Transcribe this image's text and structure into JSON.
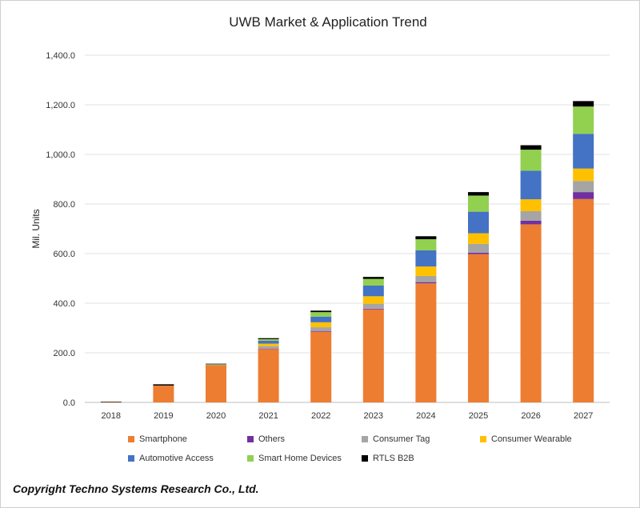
{
  "chart_data": {
    "type": "bar",
    "stacked": true,
    "title": "UWB Market & Application Trend",
    "xlabel": "",
    "ylabel": "Mil. Units",
    "ylim": [
      0,
      1400
    ],
    "yticks": [
      "0.0",
      "200.0",
      "400.0",
      "600.0",
      "800.0",
      "1,000.0",
      "1,200.0",
      "1,400.0"
    ],
    "grid": true,
    "legend_position": "bottom",
    "categories": [
      "2018",
      "2019",
      "2020",
      "2021",
      "2022",
      "2023",
      "2024",
      "2025",
      "2026",
      "2027"
    ],
    "series": [
      {
        "name": "Smartphone",
        "color": "#ED7D31",
        "values": [
          1,
          68,
          150,
          215,
          285,
          375,
          480,
          598,
          718,
          820
        ]
      },
      {
        "name": "Others",
        "color": "#7030A0",
        "values": [
          0,
          0,
          0,
          2,
          3,
          3,
          5,
          6,
          15,
          28
        ]
      },
      {
        "name": "Consumer Tag",
        "color": "#A5A5A5",
        "values": [
          0,
          0,
          1,
          10,
          15,
          20,
          25,
          35,
          38,
          45
        ]
      },
      {
        "name": "Consumer Wearable",
        "color": "#FFC000",
        "values": [
          0,
          0,
          1,
          10,
          20,
          30,
          38,
          43,
          48,
          50
        ]
      },
      {
        "name": "Automotive Access",
        "color": "#4472C4",
        "values": [
          0,
          0,
          1,
          12,
          23,
          43,
          65,
          87,
          115,
          140
        ]
      },
      {
        "name": "Smart Home Devices",
        "color": "#92D050",
        "values": [
          0,
          0,
          1,
          6,
          18,
          27,
          45,
          65,
          85,
          110
        ]
      },
      {
        "name": "RTLS B2B",
        "color": "#000000",
        "values": [
          2,
          5,
          2,
          4,
          6,
          8,
          12,
          14,
          18,
          22
        ]
      }
    ]
  },
  "copyright": "Copyright Techno Systems Research Co., Ltd."
}
